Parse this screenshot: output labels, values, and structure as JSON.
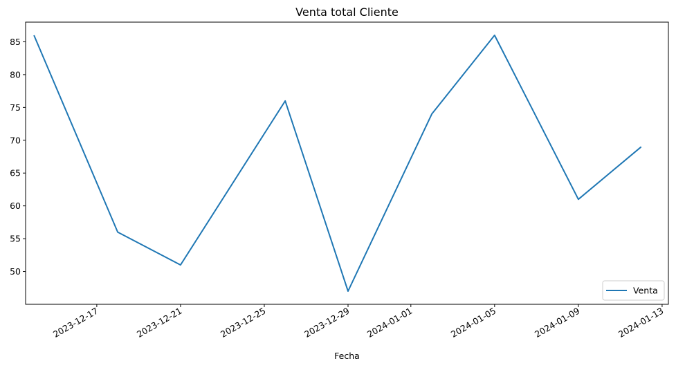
{
  "chart_data": {
    "type": "line",
    "title": "Venta total Cliente",
    "xlabel": "Fecha",
    "ylabel": "",
    "x_ticks": [
      "2023-12-17",
      "2023-12-21",
      "2023-12-25",
      "2023-12-29",
      "2024-01-01",
      "2024-01-05",
      "2024-01-09",
      "2024-01-13"
    ],
    "y_ticks": [
      50,
      55,
      60,
      65,
      70,
      75,
      80,
      85
    ],
    "ylim": [
      45.0,
      88.0
    ],
    "xlim": [
      "2023-12-14",
      "2024-01-13"
    ],
    "legend_position": "lower-right",
    "series": [
      {
        "name": "Venta",
        "color": "#1f77b4",
        "x": [
          "2023-12-14",
          "2023-12-18",
          "2023-12-21",
          "2023-12-26",
          "2023-12-29",
          "2024-01-02",
          "2024-01-05",
          "2024-01-09",
          "2024-01-12"
        ],
        "y": [
          86,
          56,
          51,
          76,
          47,
          74,
          86,
          61,
          69
        ]
      }
    ]
  }
}
